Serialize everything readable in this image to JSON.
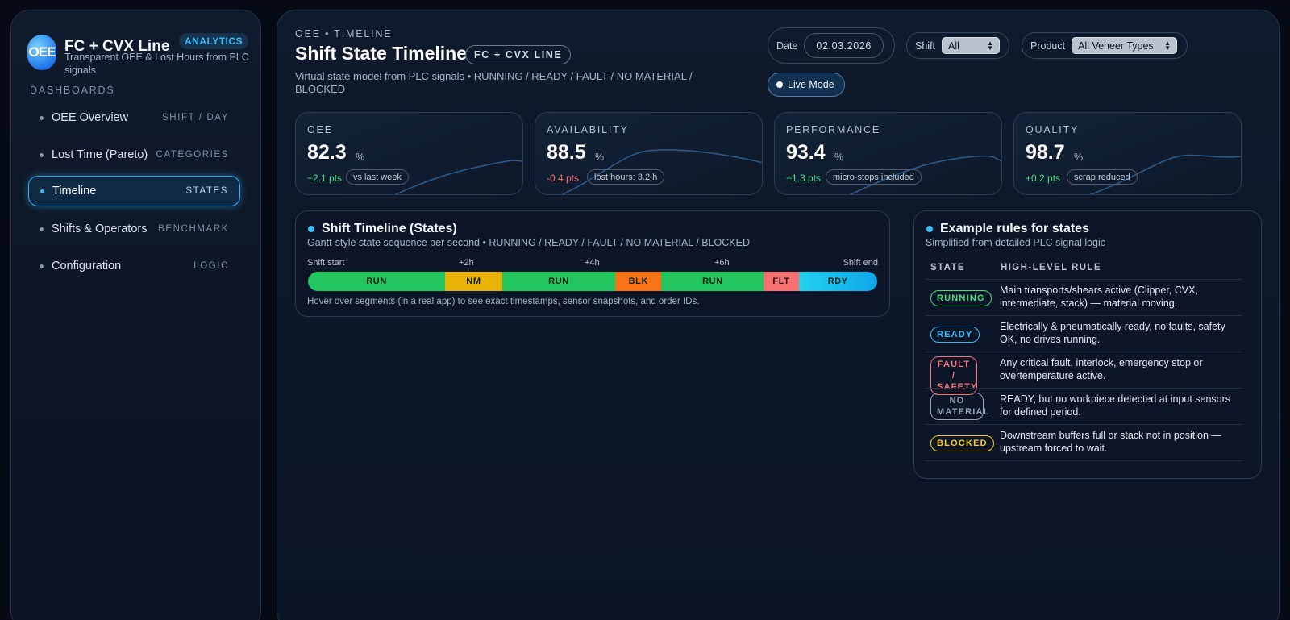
{
  "brand": {
    "logo_text": "OEE",
    "title": "FC + CVX Line",
    "badge": "ANALYTICS",
    "subtitle": "Transparent OEE & Lost Hours from PLC signals"
  },
  "sidebar": {
    "section_label": "DASHBOARDS",
    "items": [
      {
        "label": "OEE Overview",
        "tag": "SHIFT / DAY",
        "active": false
      },
      {
        "label": "Lost Time (Pareto)",
        "tag": "CATEGORIES",
        "active": false
      },
      {
        "label": "Timeline",
        "tag": "STATES",
        "active": true
      },
      {
        "label": "Shifts & Operators",
        "tag": "BENCHMARK",
        "active": false
      },
      {
        "label": "Configuration",
        "tag": "LOGIC",
        "active": false
      }
    ]
  },
  "header": {
    "eyebrow": "OEE • TIMELINE",
    "title": "Shift State Timeline",
    "chip": "FC + CVX LINE",
    "subtitle": "Virtual state model from PLC signals • RUNNING / READY / FAULT / NO MATERIAL / BLOCKED"
  },
  "controls": {
    "date_label": "Date",
    "date_value": "02.03.2026",
    "shift_label": "Shift",
    "shift_value": "All",
    "product_label": "Product",
    "product_value": "All Veneer Types",
    "live_label": "Live Mode"
  },
  "kpis": [
    {
      "label": "OEE",
      "value": "82.3",
      "unit": "%",
      "delta": "+2.1 pts",
      "delta_dir": "pos",
      "note": "vs last week"
    },
    {
      "label": "AVAILABILITY",
      "value": "88.5",
      "unit": "%",
      "delta": "-0.4 pts",
      "delta_dir": "neg",
      "note": "lost hours: 3.2 h"
    },
    {
      "label": "PERFORMANCE",
      "value": "93.4",
      "unit": "%",
      "delta": "+1.3 pts",
      "delta_dir": "pos",
      "note": "micro-stops included"
    },
    {
      "label": "QUALITY",
      "value": "98.7",
      "unit": "%",
      "delta": "+0.2 pts",
      "delta_dir": "pos",
      "note": "scrap reduced"
    }
  ],
  "timeline": {
    "title": "Shift Timeline (States)",
    "subtitle": "Gantt-style state sequence per second • RUNNING / READY / FAULT / NO MATERIAL / BLOCKED",
    "ticks": [
      "Shift start",
      "+2h",
      "+4h",
      "+6h",
      "Shift end"
    ],
    "segments": [
      {
        "label": "RUN",
        "fraction": 0.241,
        "color": "#22c55e"
      },
      {
        "label": "NM",
        "fraction": 0.1,
        "color": "#eab308"
      },
      {
        "label": "RUN",
        "fraction": 0.199,
        "color": "#22c55e"
      },
      {
        "label": "BLK",
        "fraction": 0.081,
        "color": "#f97316"
      },
      {
        "label": "RUN",
        "fraction": 0.18,
        "color": "#22c55e"
      },
      {
        "label": "FLT",
        "fraction": 0.061,
        "color": "#f87171"
      },
      {
        "label": "RDY",
        "fraction": 0.138,
        "color": "#38bdf8"
      }
    ],
    "hint": "Hover over segments (in a real app) to see exact timestamps, sensor snapshots, and order IDs."
  },
  "rules": {
    "title": "Example rules for states",
    "subtitle": "Simplified from detailed PLC signal logic",
    "col_state": "STATE",
    "col_rule": "HIGH-LEVEL RULE",
    "rows": [
      {
        "state": "RUNNING",
        "color": "#4ade80",
        "rule": "Main transports/shears active (Clipper, CVX, intermediate, stack) — material moving."
      },
      {
        "state": "READY",
        "color": "#38bdf8",
        "rule": "Electrically & pneumatically ready, no faults, safety OK, no drives running."
      },
      {
        "state": "FAULT / SAFETY",
        "color": "#f87171",
        "rule": "Any critical fault, interlock, emergency stop or overtemperature active."
      },
      {
        "state": "NO MATERIAL",
        "color": "#94a3b8",
        "rule": "READY, but no workpiece detected at input sensors for defined period."
      },
      {
        "state": "BLOCKED",
        "color": "#facc15",
        "rule": "Downstream buffers full or stack not in position — upstream forced to wait."
      }
    ]
  }
}
